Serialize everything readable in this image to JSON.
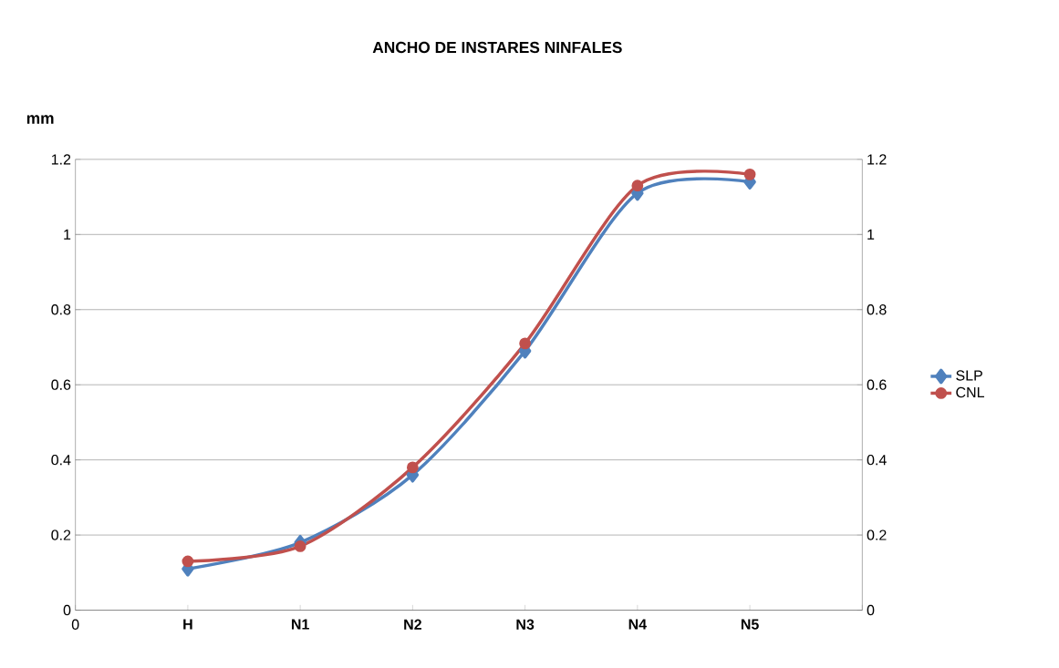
{
  "chart_data": {
    "type": "line",
    "title": "ANCHO DE INSTARES NINFALES",
    "ylabel": "mm",
    "categories": [
      "0",
      "H",
      "N1",
      "N2",
      "N3",
      "N4",
      "N5",
      null
    ],
    "series": [
      {
        "name": "SLP",
        "color": "#4f81bd",
        "marker": "diamond",
        "values": [
          null,
          0.11,
          0.18,
          0.36,
          0.69,
          1.11,
          1.14,
          null
        ]
      },
      {
        "name": "CNL",
        "color": "#c0504d",
        "marker": "circle",
        "values": [
          null,
          0.13,
          0.17,
          0.38,
          0.71,
          1.13,
          1.16,
          null
        ]
      }
    ],
    "ylim": [
      0,
      1.2
    ],
    "yticks": [
      0,
      0.2,
      0.4,
      0.6,
      0.8,
      1,
      1.2
    ],
    "y2lim": [
      0,
      1.2
    ],
    "y2ticks": [
      0,
      0.2,
      0.4,
      0.6,
      0.8,
      1,
      1.2
    ],
    "grid": "y",
    "legend": "right"
  }
}
